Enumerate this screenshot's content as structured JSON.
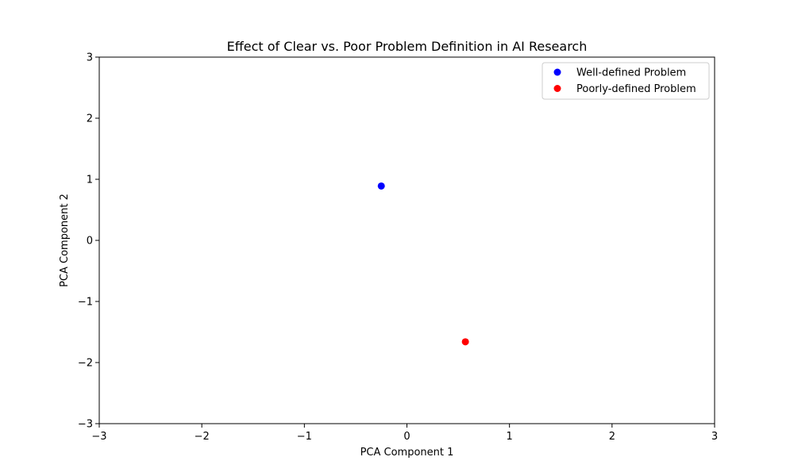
{
  "chart_data": {
    "type": "scatter",
    "title": "Effect of Clear vs. Poor Problem Definition in AI Research",
    "xlabel": "PCA Component 1",
    "ylabel": "PCA Component 2",
    "xlim": [
      -3,
      3
    ],
    "ylim": [
      -3,
      3
    ],
    "xticks": [
      -3,
      -2,
      -1,
      0,
      1,
      2,
      3
    ],
    "yticks": [
      -3,
      -2,
      -1,
      0,
      1,
      2,
      3
    ],
    "xtick_labels": [
      "−3",
      "−2",
      "−1",
      "0",
      "1",
      "2",
      "3"
    ],
    "ytick_labels": [
      "−3",
      "−2",
      "−1",
      "0",
      "1",
      "2",
      "3"
    ],
    "grid": false,
    "legend_position": "top-right",
    "series": [
      {
        "name": "Well-defined Problem",
        "color": "#0000ff",
        "points": [
          {
            "x": -0.25,
            "y": 0.89
          }
        ]
      },
      {
        "name": "Poorly-defined Problem",
        "color": "#ff0000",
        "points": [
          {
            "x": 0.57,
            "y": -1.66
          }
        ]
      }
    ]
  }
}
